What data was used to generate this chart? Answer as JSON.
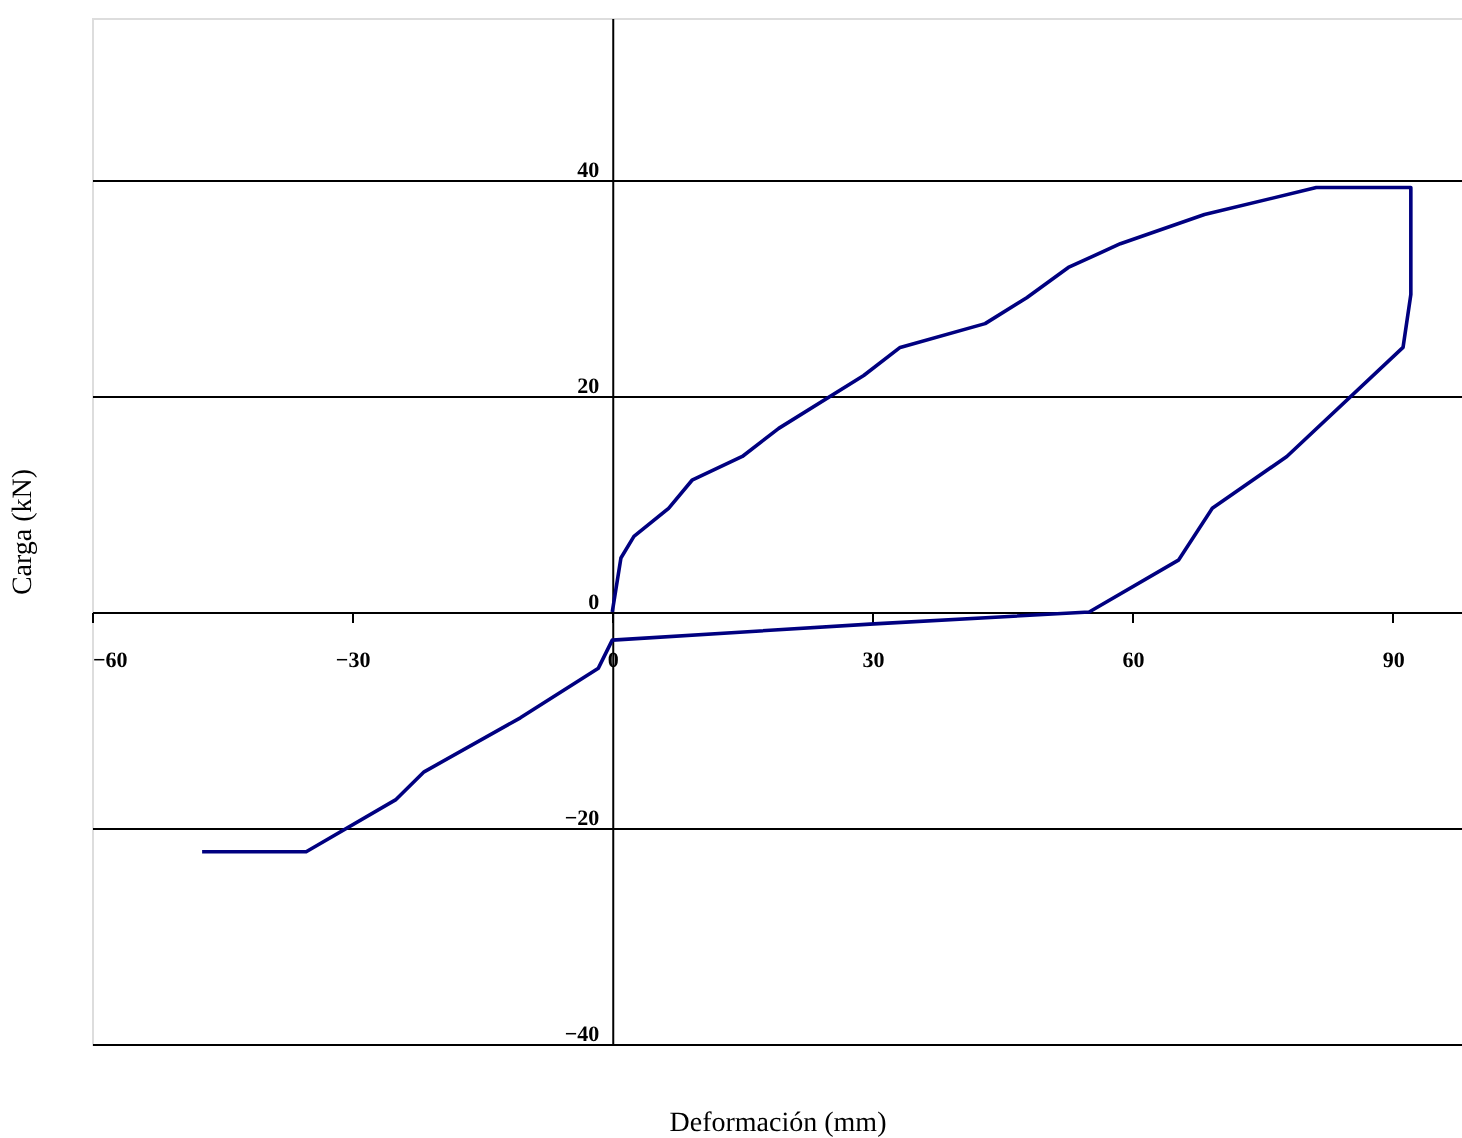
{
  "chart_data": {
    "type": "line",
    "xlabel": "Deformación (mm)",
    "ylabel": "Carga (kN)",
    "xlim": [
      -60,
      98
    ],
    "ylim": [
      -40,
      55
    ],
    "xticks": [
      -60,
      -30,
      0,
      30,
      60,
      90
    ],
    "yticks": [
      -40,
      -20,
      0,
      20,
      40
    ],
    "grid": "y",
    "series": [
      {
        "color": "#000080",
        "x": [
          0,
          1,
          2.5,
          6.5,
          9.2,
          15,
          19.2,
          29,
          33.2,
          43,
          47.8,
          52.6,
          58.6,
          68.3,
          81.2,
          92.1,
          92.1,
          91.2,
          77.8,
          69.2,
          65.3,
          55,
          30.2,
          0,
          -1.6,
          -10.6,
          -21.7,
          -25,
          -35.3,
          -47.3
        ],
        "values": [
          0,
          5,
          7,
          9.6,
          12.2,
          14.4,
          17,
          21.9,
          24.5,
          26.7,
          29.1,
          31.9,
          34.1,
          36.8,
          39.3,
          39.3,
          29.4,
          24.5,
          14.4,
          9.6,
          4.8,
          0,
          -1.1,
          -2.6,
          -5.2,
          -9.8,
          -14.8,
          -17.4,
          -22.2,
          -22.2
        ]
      }
    ]
  }
}
